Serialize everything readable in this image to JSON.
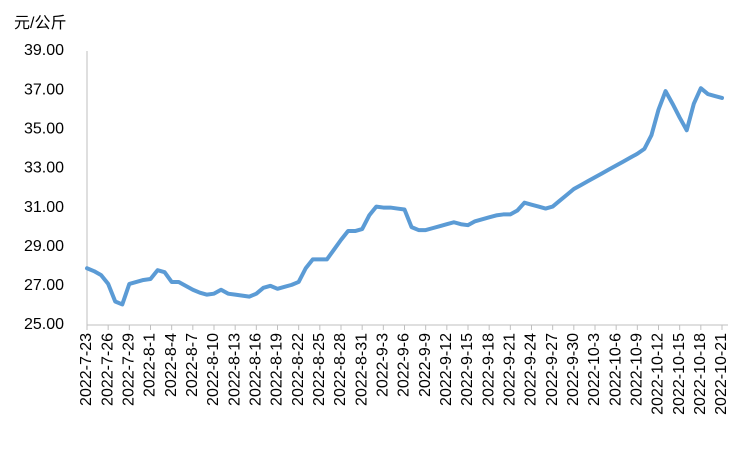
{
  "chart_data": {
    "type": "line",
    "y_axis_label": "元/公斤",
    "categories": [
      "2022-7-23",
      null,
      null,
      "2022-7-26",
      null,
      null,
      "2022-7-29",
      null,
      null,
      "2022-8-1",
      null,
      null,
      "2022-8-4",
      null,
      null,
      "2022-8-7",
      null,
      null,
      "2022-8-10",
      null,
      null,
      "2022-8-13",
      null,
      null,
      "2022-8-16",
      null,
      null,
      "2022-8-19",
      null,
      null,
      "2022-8-22",
      null,
      null,
      "2022-8-25",
      null,
      null,
      "2022-8-28",
      null,
      null,
      "2022-8-31",
      null,
      null,
      "2022-9-3",
      null,
      null,
      "2022-9-6",
      null,
      null,
      "2022-9-9",
      null,
      null,
      "2022-9-12",
      null,
      null,
      "2022-9-15",
      null,
      null,
      "2022-9-18",
      null,
      null,
      "2022-9-21",
      null,
      null,
      "2022-9-24",
      null,
      null,
      "2022-9-27",
      null,
      null,
      "2022-9-30",
      null,
      null,
      "2022-10-3",
      null,
      null,
      "2022-10-6",
      null,
      null,
      "2022-10-9",
      null,
      null,
      "2022-10-12",
      null,
      null,
      "2022-10-15",
      null,
      null,
      "2022-10-18",
      null,
      null,
      "2022-10-21"
    ],
    "values": [
      27.9,
      27.75,
      27.55,
      27.1,
      26.2,
      26.05,
      27.1,
      27.2,
      27.3,
      27.35,
      27.8,
      27.7,
      27.2,
      27.2,
      27.0,
      26.8,
      26.65,
      26.55,
      26.6,
      26.8,
      26.6,
      26.55,
      26.5,
      26.45,
      26.6,
      26.9,
      27.0,
      26.85,
      26.95,
      27.05,
      27.2,
      27.9,
      28.35,
      28.35,
      28.35,
      28.85,
      29.35,
      29.8,
      29.8,
      29.9,
      30.6,
      31.05,
      31.0,
      31.0,
      30.95,
      30.9,
      30.0,
      29.85,
      29.85,
      29.95,
      30.05,
      30.15,
      30.25,
      30.15,
      30.1,
      30.3,
      30.4,
      30.5,
      30.6,
      30.65,
      30.65,
      30.85,
      31.25,
      31.15,
      31.05,
      30.95,
      31.05,
      31.35,
      31.65,
      31.95,
      32.15,
      32.35,
      32.55,
      32.75,
      32.95,
      33.15,
      33.35,
      33.55,
      33.75,
      34.0,
      34.7,
      36.0,
      36.95,
      36.3,
      35.6,
      34.95,
      36.3,
      37.1,
      36.8,
      36.7,
      36.6
    ],
    "color": "#5b9bd5",
    "ylim": [
      25,
      39
    ],
    "yticks": [
      {
        "value": 25,
        "label": "25.00"
      },
      {
        "value": 27,
        "label": "27.00"
      },
      {
        "value": 29,
        "label": "29.00"
      },
      {
        "value": 31,
        "label": "31.00"
      },
      {
        "value": 33,
        "label": "33.00"
      },
      {
        "value": 35,
        "label": "35.00"
      },
      {
        "value": 37,
        "label": "37.00"
      },
      {
        "value": 39,
        "label": "39.00"
      }
    ],
    "grid": false
  }
}
